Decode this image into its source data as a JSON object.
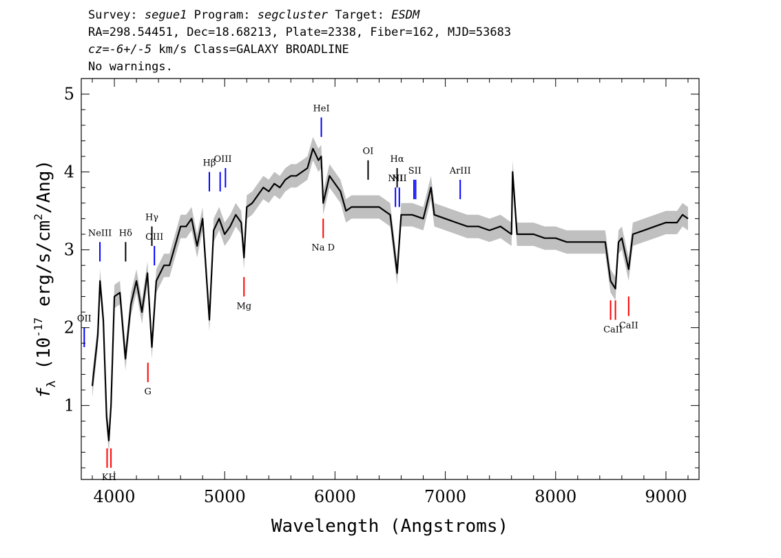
{
  "header": {
    "survey_label": "Survey:",
    "survey": "segue1",
    "program_label": "Program:",
    "program": "segcluster",
    "target_label": "Target:",
    "target": "ESDM",
    "line2": "RA=298.54451, Dec=18.68213, Plate=2338, Fiber=162, MJD=53683",
    "cz_prefix": "cz",
    "cz_value": "=-6+/-5",
    "cz_units": " km/s Class=GALAXY BROADLINE",
    "line4": "No warnings."
  },
  "colors": {
    "spectrum": "#000000",
    "error_band": "#c0c0c0",
    "emission_marker": "#0000ff",
    "absorption_marker": "#ff0000",
    "secondary_marker": "#000000"
  },
  "chart_data": {
    "type": "line",
    "title": "",
    "xlabel": "Wavelength (Angstroms)",
    "ylabel_main": "f",
    "ylabel_sub": "λ",
    "ylabel_rest": " (10",
    "ylabel_exp": "-17",
    "ylabel_units": " erg/s/cm",
    "ylabel_units_exp": "2",
    "ylabel_tail": "/Ang)",
    "xlim": [
      3700,
      9300
    ],
    "ylim": [
      0.05,
      5.2
    ],
    "x_ticks": [
      4000,
      5000,
      6000,
      7000,
      8000,
      9000
    ],
    "x_tick_labels": [
      "4000",
      "5000",
      "6000",
      "7000",
      "8000",
      "9000"
    ],
    "y_ticks": [
      1,
      2,
      3,
      4,
      5
    ],
    "y_tick_labels": [
      "1",
      "2",
      "3",
      "4",
      "5"
    ],
    "grid": false,
    "legend": "none",
    "series": [
      {
        "x": [
          3800,
          3850,
          3870,
          3900,
          3930,
          3950,
          3970,
          4000,
          4050,
          4100,
          4150,
          4200,
          4250,
          4300,
          4340,
          4380,
          4450,
          4500,
          4550,
          4600,
          4650,
          4700,
          4750,
          4800,
          4861,
          4900,
          4950,
          5000,
          5050,
          5100,
          5150,
          5175,
          5200,
          5250,
          5300,
          5350,
          5400,
          5450,
          5500,
          5550,
          5600,
          5650,
          5700,
          5750,
          5800,
          5850,
          5875,
          5893,
          5950,
          6000,
          6050,
          6100,
          6150,
          6200,
          6300,
          6400,
          6500,
          6563,
          6600,
          6700,
          6800,
          6870,
          6900,
          7000,
          7100,
          7200,
          7300,
          7400,
          7500,
          7600,
          7610,
          7650,
          7700,
          7800,
          7900,
          8000,
          8100,
          8200,
          8300,
          8400,
          8450,
          8498,
          8542,
          8570,
          8600,
          8662,
          8700,
          8800,
          8900,
          9000,
          9100,
          9150,
          9200
        ],
        "y": [
          1.25,
          1.9,
          2.6,
          2.1,
          0.85,
          0.55,
          1.0,
          2.4,
          2.45,
          1.6,
          2.3,
          2.6,
          2.2,
          2.7,
          1.75,
          2.6,
          2.8,
          2.8,
          3.05,
          3.3,
          3.3,
          3.4,
          3.05,
          3.4,
          2.1,
          3.25,
          3.4,
          3.2,
          3.3,
          3.45,
          3.35,
          2.9,
          3.55,
          3.6,
          3.7,
          3.8,
          3.75,
          3.85,
          3.8,
          3.9,
          3.95,
          3.95,
          4.0,
          4.05,
          4.3,
          4.15,
          4.2,
          3.6,
          3.95,
          3.85,
          3.75,
          3.5,
          3.55,
          3.55,
          3.55,
          3.55,
          3.45,
          2.7,
          3.45,
          3.45,
          3.4,
          3.8,
          3.45,
          3.4,
          3.35,
          3.3,
          3.3,
          3.25,
          3.3,
          3.2,
          4.0,
          3.2,
          3.2,
          3.2,
          3.15,
          3.15,
          3.1,
          3.1,
          3.1,
          3.1,
          3.1,
          2.6,
          2.5,
          3.1,
          3.15,
          2.75,
          3.2,
          3.25,
          3.3,
          3.35,
          3.35,
          3.45,
          3.4
        ],
        "err": 0.15
      }
    ],
    "emission_lines": [
      {
        "label": "OII",
        "wave": 3727,
        "y0": 1.75,
        "y1": 2.0,
        "color": "blue"
      },
      {
        "label": "NeIII",
        "wave": 3869,
        "y0": 2.85,
        "y1": 3.1,
        "color": "blue"
      },
      {
        "label": "Hδ",
        "wave": 4102,
        "y0": 2.85,
        "y1": 3.1,
        "color": "black"
      },
      {
        "label": "Hγ",
        "wave": 4340,
        "y0": 3.05,
        "y1": 3.3,
        "color": "black"
      },
      {
        "label": "OIII",
        "wave": 4363,
        "y0": 2.8,
        "y1": 3.05,
        "color": "blue"
      },
      {
        "label": "Hβ",
        "wave": 4861,
        "y0": 3.75,
        "y1": 4.0,
        "color": "blue"
      },
      {
        "label": "OIII",
        "wave": 4959,
        "y0": 3.75,
        "y1": 4.0,
        "color": "blue"
      },
      {
        "label": "OIII",
        "wave": 5007,
        "y0": 3.8,
        "y1": 4.05,
        "color": "blue"
      },
      {
        "label": "HeI",
        "wave": 5876,
        "y0": 4.45,
        "y1": 4.7,
        "color": "blue"
      },
      {
        "label": "OI",
        "wave": 6300,
        "y0": 3.9,
        "y1": 4.15,
        "color": "black"
      },
      {
        "label": "NII",
        "wave": 6548,
        "y0": 3.55,
        "y1": 3.8,
        "color": "blue"
      },
      {
        "label": "Hα",
        "wave": 6563,
        "y0": 3.8,
        "y1": 4.05,
        "color": "black"
      },
      {
        "label": "NII",
        "wave": 6583,
        "y0": 3.55,
        "y1": 3.8,
        "color": "blue"
      },
      {
        "label": "SII",
        "wave": 6716,
        "y0": 3.65,
        "y1": 3.9,
        "color": "blue"
      },
      {
        "label": "SII",
        "wave": 6731,
        "y0": 3.65,
        "y1": 3.9,
        "color": "blue"
      },
      {
        "label": "ArIII",
        "wave": 7135,
        "y0": 3.65,
        "y1": 3.9,
        "color": "blue"
      }
    ],
    "absorption_lines": [
      {
        "label": "K",
        "wave": 3934,
        "y0": 0.2,
        "y1": 0.45,
        "color": "red"
      },
      {
        "label": "H",
        "wave": 3969,
        "y0": 0.2,
        "y1": 0.45,
        "color": "red"
      },
      {
        "label": "G",
        "wave": 4304,
        "y0": 1.3,
        "y1": 1.55,
        "color": "red"
      },
      {
        "label": "Mg",
        "wave": 5175,
        "y0": 2.4,
        "y1": 2.65,
        "color": "red"
      },
      {
        "label": "Na D",
        "wave": 5893,
        "y0": 3.15,
        "y1": 3.4,
        "color": "red"
      },
      {
        "label": "CaII",
        "wave": 8498,
        "y0": 2.1,
        "y1": 2.35,
        "color": "red"
      },
      {
        "label": "CaII",
        "wave": 8542,
        "y0": 2.1,
        "y1": 2.35,
        "color": "red"
      },
      {
        "label": "CaII",
        "wave": 8662,
        "y0": 2.15,
        "y1": 2.4,
        "color": "red"
      }
    ]
  }
}
